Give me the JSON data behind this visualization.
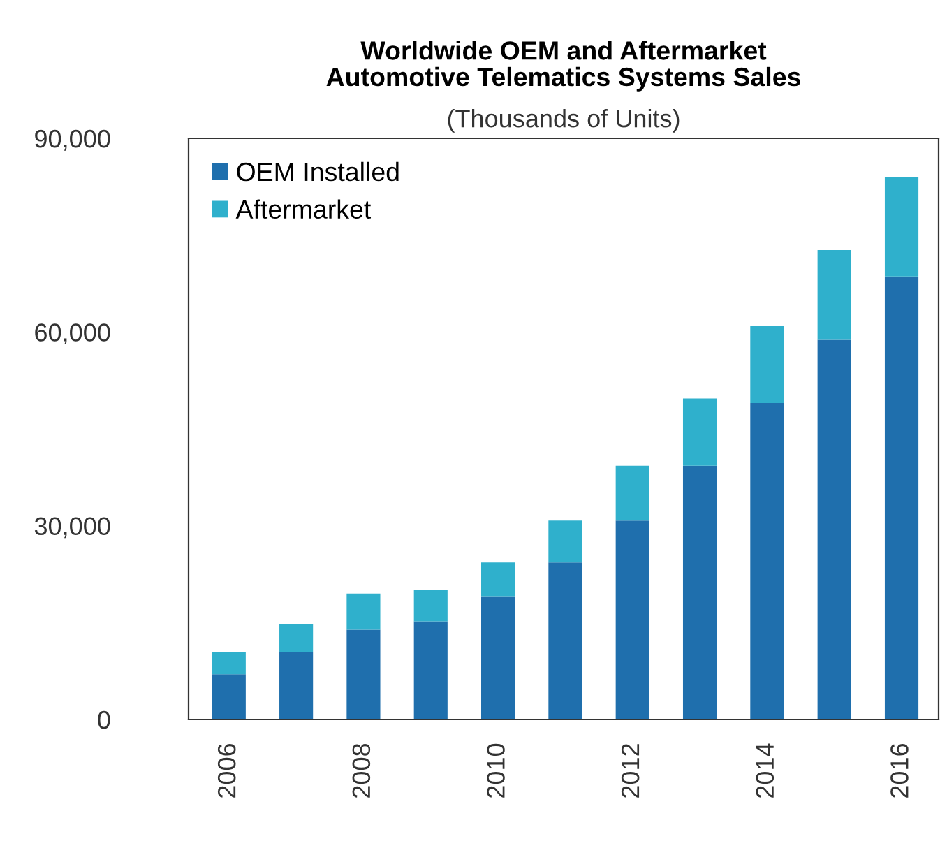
{
  "chart_data": {
    "type": "bar",
    "title": "Worldwide OEM and Aftermarket\nAutomotive Telematics Systems Sales",
    "subtitle": "(Thousands of Units)",
    "categories": [
      "2006",
      null,
      "2008",
      null,
      "2010",
      null,
      "2012",
      null,
      "2014",
      null,
      "2016"
    ],
    "series": [
      {
        "name": "OEM Installed",
        "color": "#1f6fad",
        "values": [
          7000,
          10400,
          13900,
          15200,
          19100,
          24300,
          30800,
          39300,
          49000,
          58800,
          68600
        ]
      },
      {
        "name": "Aftermarket",
        "color": "#2fb0cc",
        "values": [
          3400,
          4400,
          5600,
          4800,
          5200,
          6500,
          8500,
          10400,
          12000,
          13900,
          15400
        ]
      }
    ],
    "stacked": true,
    "ylim": [
      0,
      90000
    ],
    "yticks": [
      {
        "value": 0,
        "label": "0"
      },
      {
        "value": 30000,
        "label": "30,000"
      },
      {
        "value": 60000,
        "label": "60,000"
      },
      {
        "value": 90000,
        "label": "90,000"
      }
    ],
    "grid": false,
    "legend": "top left"
  }
}
